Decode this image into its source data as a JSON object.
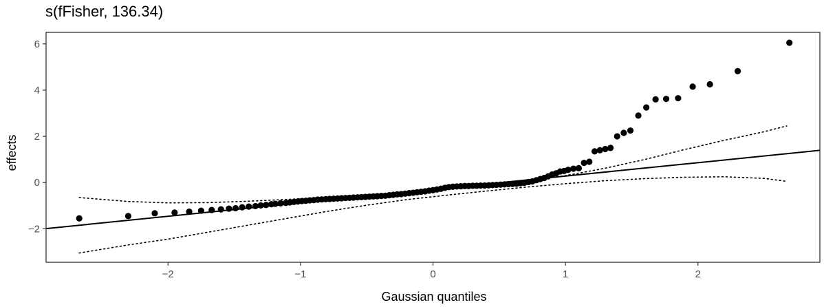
{
  "chart_data": {
    "type": "scatter",
    "title": "s(fFisher, 136.34)",
    "xlabel": "Gaussian quantiles",
    "ylabel": "effects",
    "xlim": [
      -2.92,
      2.92
    ],
    "ylim": [
      -3.45,
      6.5
    ],
    "x_ticks": [
      -2,
      -1,
      0,
      1,
      2
    ],
    "x_tick_labels": [
      "−2",
      "−1",
      "0",
      "1",
      "2"
    ],
    "y_ticks": [
      -2,
      0,
      2,
      4,
      6
    ],
    "y_tick_labels": [
      "−2",
      "0",
      "2",
      "4",
      "6"
    ],
    "grid": false,
    "reference_line": {
      "intercept": -0.3,
      "slope": 0.58,
      "style": "solid"
    },
    "confidence_band": {
      "style": "dotted",
      "x": [
        -2.67,
        -2.3,
        -2.0,
        -1.7,
        -1.4,
        -1.1,
        -0.8,
        -0.5,
        -0.2,
        0.1,
        0.4,
        0.7,
        1.0,
        1.3,
        1.6,
        1.9,
        2.2,
        2.5,
        2.67
      ],
      "upper": [
        -0.65,
        -0.82,
        -0.88,
        -0.87,
        -0.81,
        -0.73,
        -0.64,
        -0.53,
        -0.41,
        -0.28,
        -0.14,
        0.05,
        0.3,
        0.62,
        1.0,
        1.43,
        1.83,
        2.2,
        2.45
      ],
      "lower": [
        -3.05,
        -2.7,
        -2.45,
        -2.15,
        -1.85,
        -1.55,
        -1.25,
        -0.98,
        -0.74,
        -0.55,
        -0.37,
        -0.2,
        -0.05,
        0.08,
        0.17,
        0.23,
        0.25,
        0.18,
        0.05
      ]
    },
    "points": {
      "x": [
        -2.67,
        -2.3,
        -2.1,
        -1.95,
        -1.84,
        -1.75,
        -1.67,
        -1.6,
        -1.54,
        -1.49,
        -1.44,
        -1.39,
        -1.34,
        -1.3,
        -1.26,
        -1.22,
        -1.19,
        -1.15,
        -1.11,
        -1.08,
        -1.05,
        -1.02,
        -0.99,
        -0.96,
        -0.93,
        -0.9,
        -0.87,
        -0.84,
        -0.81,
        -0.78,
        -0.75,
        -0.72,
        -0.69,
        -0.66,
        -0.63,
        -0.6,
        -0.57,
        -0.54,
        -0.51,
        -0.48,
        -0.45,
        -0.42,
        -0.39,
        -0.36,
        -0.33,
        -0.3,
        -0.27,
        -0.24,
        -0.21,
        -0.18,
        -0.15,
        -0.12,
        -0.09,
        -0.06,
        -0.03,
        0.0,
        0.03,
        0.06,
        0.09,
        0.12,
        0.15,
        0.18,
        0.21,
        0.24,
        0.27,
        0.3,
        0.33,
        0.36,
        0.39,
        0.42,
        0.45,
        0.48,
        0.51,
        0.54,
        0.57,
        0.6,
        0.63,
        0.66,
        0.69,
        0.72,
        0.75,
        0.78,
        0.81,
        0.84,
        0.87,
        0.9,
        0.93,
        0.96,
        0.99,
        1.02,
        1.06,
        1.1,
        1.14,
        1.18,
        1.22,
        1.26,
        1.3,
        1.34,
        1.39,
        1.44,
        1.49,
        1.55,
        1.61,
        1.68,
        1.76,
        1.85,
        1.96,
        2.09,
        2.3,
        2.69
      ],
      "y": [
        -1.55,
        -1.45,
        -1.33,
        -1.3,
        -1.26,
        -1.22,
        -1.19,
        -1.16,
        -1.13,
        -1.11,
        -1.07,
        -1.04,
        -1.02,
        -0.99,
        -0.97,
        -0.94,
        -0.92,
        -0.9,
        -0.88,
        -0.86,
        -0.84,
        -0.82,
        -0.8,
        -0.79,
        -0.77,
        -0.76,
        -0.74,
        -0.73,
        -0.72,
        -0.71,
        -0.7,
        -0.69,
        -0.68,
        -0.67,
        -0.66,
        -0.65,
        -0.64,
        -0.63,
        -0.62,
        -0.61,
        -0.6,
        -0.59,
        -0.58,
        -0.57,
        -0.55,
        -0.53,
        -0.51,
        -0.5,
        -0.48,
        -0.46,
        -0.44,
        -0.42,
        -0.4,
        -0.38,
        -0.35,
        -0.33,
        -0.3,
        -0.27,
        -0.23,
        -0.2,
        -0.18,
        -0.17,
        -0.16,
        -0.15,
        -0.15,
        -0.14,
        -0.14,
        -0.13,
        -0.13,
        -0.12,
        -0.11,
        -0.1,
        -0.09,
        -0.08,
        -0.07,
        -0.06,
        -0.05,
        -0.03,
        -0.01,
        0.02,
        0.05,
        0.1,
        0.15,
        0.2,
        0.27,
        0.35,
        0.4,
        0.48,
        0.5,
        0.55,
        0.6,
        0.62,
        0.85,
        0.9,
        1.35,
        1.4,
        1.45,
        1.5,
        2.0,
        2.15,
        2.25,
        2.9,
        3.25,
        3.6,
        3.62,
        3.65,
        4.15,
        4.25,
        4.82,
        6.05
      ]
    }
  }
}
